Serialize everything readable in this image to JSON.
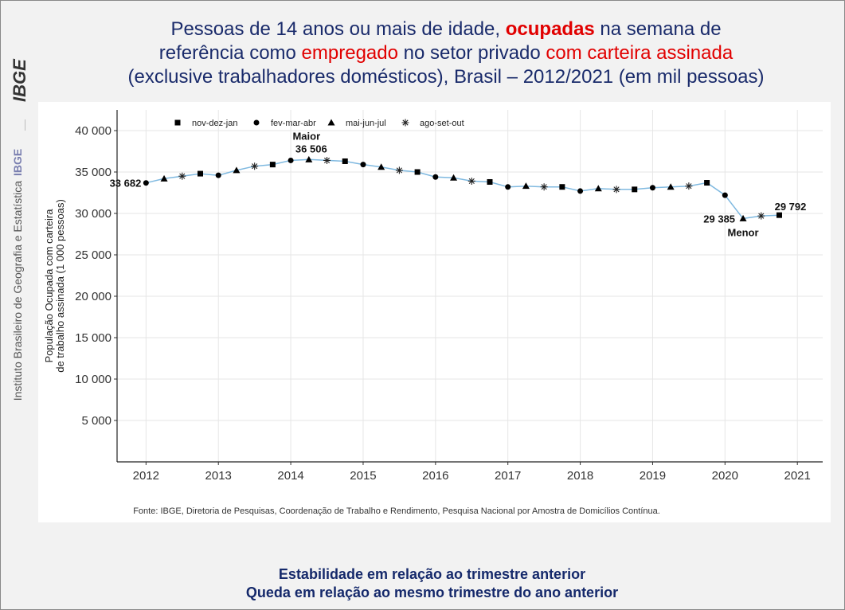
{
  "title": {
    "part1": "Pessoas de 14 anos ou mais de idade, ",
    "part2": "ocupadas",
    "part3": " na semana de",
    "part4": "referência como ",
    "part5": "empregado",
    "part6": " no setor privado ",
    "part7": "com carteira assinada",
    "part8": "(exclusive trabalhadores domésticos), Brasil – 2012/2021 (em mil pessoas)"
  },
  "sidebar": {
    "logo_text": "IBGE",
    "institute": "Instituto Brasileiro de Geografia e Estatística",
    "ibge_label": "IBGE"
  },
  "colors": {
    "title": "#1a2b6b",
    "highlight": "#e10000",
    "line": "#7fb9e0",
    "footer": "#15296b"
  },
  "chart_data": {
    "type": "line",
    "ylabel": "População Ocupada com carteira de trabalho assinada (1 000 pessoas)",
    "ylabel_line1": "População Ocupada com carteira",
    "ylabel_line2": "de trabalho assinada (1 000 pessoas)",
    "ylim": [
      0,
      42500
    ],
    "yticks": [
      5000,
      10000,
      15000,
      20000,
      25000,
      30000,
      35000,
      40000
    ],
    "ytick_labels": [
      "5 000",
      "10 000",
      "15 000",
      "20 000",
      "25 000",
      "30 000",
      "35 000",
      "40 000"
    ],
    "xlim": [
      2011.6,
      2021.35
    ],
    "xticks": [
      2012,
      2013,
      2014,
      2015,
      2016,
      2017,
      2018,
      2019,
      2020,
      2021
    ],
    "xtick_labels": [
      "2012",
      "2013",
      "2014",
      "2015",
      "2016",
      "2017",
      "2018",
      "2019",
      "2020",
      "2021"
    ],
    "legend": [
      {
        "marker": "square",
        "label": "nov-dez-jan"
      },
      {
        "marker": "circle",
        "label": "fev-mar-abr"
      },
      {
        "marker": "triangle",
        "label": "mai-jun-jul"
      },
      {
        "marker": "asterisk",
        "label": "ago-set-out"
      }
    ],
    "legend_position": "top-left",
    "points": [
      {
        "x": 2012.0,
        "y": 33682,
        "m": "circle"
      },
      {
        "x": 2012.25,
        "y": 34200,
        "m": "triangle"
      },
      {
        "x": 2012.5,
        "y": 34500,
        "m": "asterisk"
      },
      {
        "x": 2012.75,
        "y": 34800,
        "m": "square"
      },
      {
        "x": 2013.0,
        "y": 34600,
        "m": "circle"
      },
      {
        "x": 2013.25,
        "y": 35200,
        "m": "triangle"
      },
      {
        "x": 2013.5,
        "y": 35700,
        "m": "asterisk"
      },
      {
        "x": 2013.75,
        "y": 35900,
        "m": "square"
      },
      {
        "x": 2014.0,
        "y": 36400,
        "m": "circle"
      },
      {
        "x": 2014.25,
        "y": 36506,
        "m": "triangle"
      },
      {
        "x": 2014.5,
        "y": 36400,
        "m": "asterisk"
      },
      {
        "x": 2014.75,
        "y": 36300,
        "m": "square"
      },
      {
        "x": 2015.0,
        "y": 35900,
        "m": "circle"
      },
      {
        "x": 2015.25,
        "y": 35600,
        "m": "triangle"
      },
      {
        "x": 2015.5,
        "y": 35200,
        "m": "asterisk"
      },
      {
        "x": 2015.75,
        "y": 35000,
        "m": "square"
      },
      {
        "x": 2016.0,
        "y": 34400,
        "m": "circle"
      },
      {
        "x": 2016.25,
        "y": 34300,
        "m": "triangle"
      },
      {
        "x": 2016.5,
        "y": 33900,
        "m": "asterisk"
      },
      {
        "x": 2016.75,
        "y": 33800,
        "m": "square"
      },
      {
        "x": 2017.0,
        "y": 33200,
        "m": "circle"
      },
      {
        "x": 2017.25,
        "y": 33300,
        "m": "triangle"
      },
      {
        "x": 2017.5,
        "y": 33200,
        "m": "asterisk"
      },
      {
        "x": 2017.75,
        "y": 33200,
        "m": "square"
      },
      {
        "x": 2018.0,
        "y": 32700,
        "m": "circle"
      },
      {
        "x": 2018.25,
        "y": 33000,
        "m": "triangle"
      },
      {
        "x": 2018.5,
        "y": 32900,
        "m": "asterisk"
      },
      {
        "x": 2018.75,
        "y": 32900,
        "m": "square"
      },
      {
        "x": 2019.0,
        "y": 33100,
        "m": "circle"
      },
      {
        "x": 2019.25,
        "y": 33200,
        "m": "triangle"
      },
      {
        "x": 2019.5,
        "y": 33300,
        "m": "asterisk"
      },
      {
        "x": 2019.75,
        "y": 33700,
        "m": "square"
      },
      {
        "x": 2020.0,
        "y": 32200,
        "m": "circle"
      },
      {
        "x": 2020.25,
        "y": 29385,
        "m": "triangle"
      },
      {
        "x": 2020.5,
        "y": 29700,
        "m": "asterisk"
      },
      {
        "x": 2020.75,
        "y": 29792,
        "m": "square"
      }
    ],
    "annotations": {
      "first": "33 682",
      "max_label": "Maior",
      "max_value": "36 506",
      "min_value": "29 385",
      "min_label": "Menor",
      "last": "29 792"
    },
    "grid": true,
    "source": "Fonte: IBGE, Diretoria de Pesquisas, Coordenação de Trabalho e Rendimento, Pesquisa Nacional por Amostra de Domicílios Contínua."
  },
  "footer": {
    "line1": "Estabilidade em relação ao trimestre anterior",
    "line2": "Queda em relação ao mesmo trimestre do ano anterior"
  }
}
